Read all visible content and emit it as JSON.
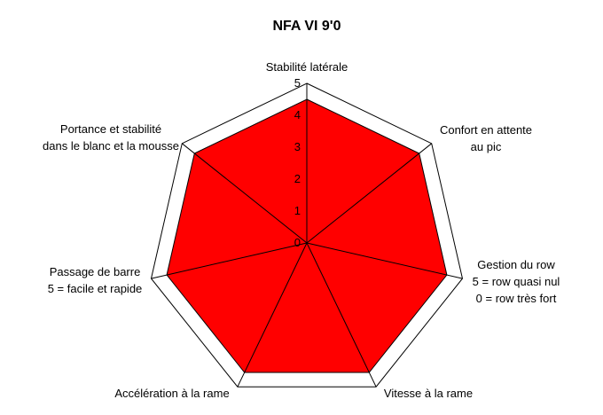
{
  "chart_data": {
    "type": "radar",
    "title": "NFA VI 9'0",
    "axes": [
      [
        "Stabilité latérale"
      ],
      [
        "Confort en attente",
        "au pic"
      ],
      [
        "Gestion du row",
        "5 = row  quasi nul",
        "0 = row  très fort"
      ],
      [
        "Vitesse à la rame"
      ],
      [
        "Accélération à la rame"
      ],
      [
        "Passage de barre",
        "5 = facile et rapide"
      ],
      [
        "Portance et stabilité",
        "dans le blanc et la mousse"
      ]
    ],
    "values": [
      4.5,
      4.5,
      4.5,
      4.5,
      4.5,
      4.5,
      4.5
    ],
    "range": [
      0,
      5
    ],
    "ticks": [
      "0",
      "1",
      "2",
      "3",
      "4",
      "5"
    ],
    "series_color": "#ff0000",
    "grid": true
  }
}
